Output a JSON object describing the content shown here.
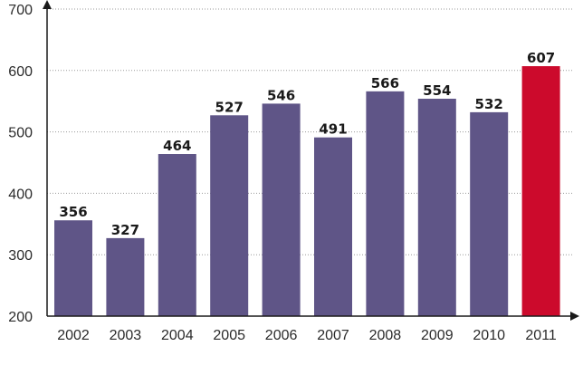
{
  "chart_data": {
    "type": "bar",
    "categories": [
      "2002",
      "2003",
      "2004",
      "2005",
      "2006",
      "2007",
      "2008",
      "2009",
      "2010",
      "2011"
    ],
    "values": [
      356,
      327,
      464,
      527,
      546,
      491,
      566,
      554,
      532,
      607
    ],
    "value_labels": [
      "356",
      "327",
      "464",
      "527",
      "546",
      "491",
      "566",
      "554",
      "532",
      "607"
    ],
    "y_ticks": [
      200,
      300,
      400,
      500,
      600,
      700
    ],
    "y_tick_labels": [
      "200",
      "300",
      "400",
      "500",
      "600",
      "700"
    ],
    "ylim": [
      200,
      700
    ],
    "grid": true,
    "colors": {
      "bar": "#5f5587",
      "highlight_bar": "#cc0a2c",
      "highlight_index": 9
    }
  }
}
